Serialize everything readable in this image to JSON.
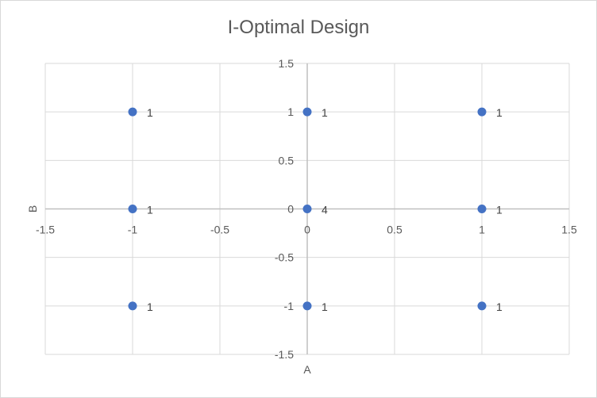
{
  "chart_data": {
    "type": "scatter",
    "title": "I-Optimal Design",
    "xlabel": "A",
    "ylabel": "B",
    "xlim": [
      -1.5,
      1.5
    ],
    "ylim": [
      -1.5,
      1.5
    ],
    "x_ticks": [
      -1.5,
      -1,
      -0.5,
      0,
      0.5,
      1,
      1.5
    ],
    "y_ticks": [
      -1.5,
      -1,
      -0.5,
      0,
      0.5,
      1,
      1.5
    ],
    "grid": true,
    "legend": "none",
    "marker_color": "#4472C4",
    "points": [
      {
        "x": -1,
        "y": 1,
        "label": "1"
      },
      {
        "x": 0,
        "y": 1,
        "label": "1"
      },
      {
        "x": 1,
        "y": 1,
        "label": "1"
      },
      {
        "x": -1,
        "y": 0,
        "label": "1"
      },
      {
        "x": 0,
        "y": 0,
        "label": "4"
      },
      {
        "x": 1,
        "y": 0,
        "label": "1"
      },
      {
        "x": -1,
        "y": -1,
        "label": "1"
      },
      {
        "x": 0,
        "y": -1,
        "label": "1"
      },
      {
        "x": 1,
        "y": -1,
        "label": "1"
      }
    ]
  }
}
